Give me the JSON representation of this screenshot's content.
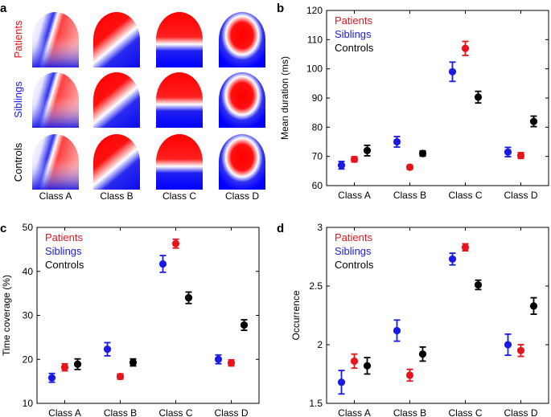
{
  "panel_letters": {
    "a": "a",
    "b": "b",
    "c": "c",
    "d": "d"
  },
  "colors": {
    "patients": "#e8141b",
    "siblings": "#1a1ae6",
    "controls": "#000000"
  },
  "panel_a": {
    "type": "topographic-maps",
    "rows": [
      "Patients",
      "Siblings",
      "Controls"
    ],
    "row_colors": [
      "#e8141b",
      "#1a1ae6",
      "#000000"
    ],
    "columns": [
      "Class A",
      "Class B",
      "Class C",
      "Class D"
    ]
  },
  "chart_data": [
    {
      "panel": "b",
      "type": "scatter",
      "ylabel": "Mean duration (ms)",
      "categories": [
        "Class A",
        "Class B",
        "Class C",
        "Class D"
      ],
      "ylim": [
        60,
        120
      ],
      "yticks": [
        60,
        70,
        80,
        90,
        100,
        110,
        120
      ],
      "legend": [
        "Patients",
        "Siblings",
        "Controls"
      ],
      "legend_placement": "top-left",
      "series": [
        {
          "name": "Siblings",
          "color": "#1a1ae6",
          "values": [
            67,
            75,
            99,
            71.5
          ],
          "err": [
            1.3,
            1.8,
            3.3,
            1.6
          ]
        },
        {
          "name": "Patients",
          "color": "#e8141b",
          "values": [
            69,
            66.3,
            107,
            70.3
          ],
          "err": [
            0.9,
            0.7,
            2.4,
            1.0
          ]
        },
        {
          "name": "Controls",
          "color": "#000000",
          "values": [
            72,
            71,
            90.3,
            82
          ],
          "err": [
            1.8,
            0.9,
            2.0,
            1.8
          ]
        }
      ]
    },
    {
      "panel": "c",
      "type": "scatter",
      "ylabel": "Time coverage (%)",
      "categories": [
        "Class A",
        "Class B",
        "Class C",
        "Class D"
      ],
      "ylim": [
        10,
        50
      ],
      "yticks": [
        10,
        20,
        30,
        40,
        50
      ],
      "legend": [
        "Patients",
        "Siblings",
        "Controls"
      ],
      "legend_placement": "top-left",
      "series": [
        {
          "name": "Siblings",
          "color": "#1a1ae6",
          "values": [
            15.8,
            22.3,
            41.7,
            20
          ],
          "err": [
            1.0,
            1.5,
            1.9,
            1.0
          ]
        },
        {
          "name": "Patients",
          "color": "#e8141b",
          "values": [
            18.2,
            16.1,
            46.3,
            19.2
          ],
          "err": [
            0.8,
            0.6,
            1.0,
            0.7
          ]
        },
        {
          "name": "Controls",
          "color": "#000000",
          "values": [
            18.9,
            19.3,
            34,
            27.8
          ],
          "err": [
            1.2,
            0.8,
            1.3,
            1.2
          ]
        }
      ]
    },
    {
      "panel": "d",
      "type": "scatter",
      "ylabel": "Occurrence",
      "categories": [
        "Class A",
        "Class B",
        "Class C",
        "Class D"
      ],
      "ylim": [
        1.5,
        3
      ],
      "yticks": [
        1.5,
        2,
        2.5,
        3
      ],
      "yticklabels": [
        "1.5",
        "2",
        "2.5",
        "3"
      ],
      "legend": [
        "Patients",
        "Siblings",
        "Controls"
      ],
      "legend_placement": "top-left",
      "series": [
        {
          "name": "Siblings",
          "color": "#1a1ae6",
          "values": [
            1.68,
            2.12,
            2.73,
            2.0
          ],
          "err": [
            0.1,
            0.09,
            0.05,
            0.09
          ]
        },
        {
          "name": "Patients",
          "color": "#e8141b",
          "values": [
            1.86,
            1.74,
            2.83,
            1.95
          ],
          "err": [
            0.06,
            0.05,
            0.03,
            0.05
          ]
        },
        {
          "name": "Controls",
          "color": "#000000",
          "values": [
            1.82,
            1.92,
            2.51,
            2.33
          ],
          "err": [
            0.07,
            0.06,
            0.04,
            0.07
          ]
        }
      ]
    }
  ]
}
